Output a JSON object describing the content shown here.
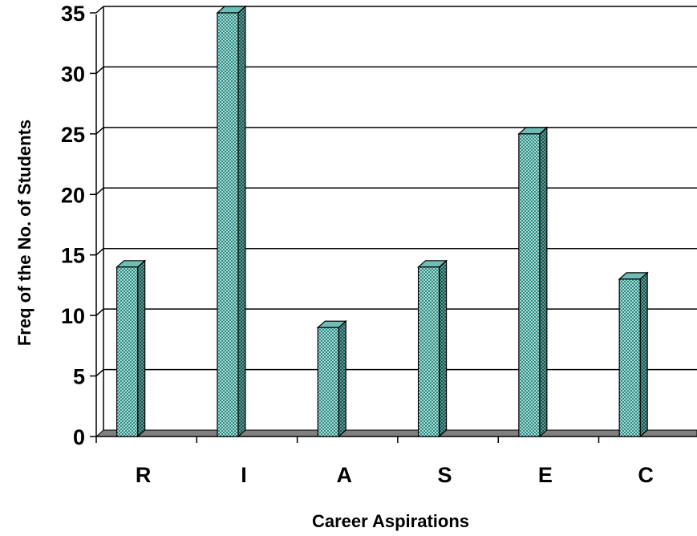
{
  "chart_data": {
    "type": "bar",
    "title": "",
    "xlabel": "Career Aspirations",
    "ylabel": "Freq of the No. of Students",
    "categories": [
      "R",
      "I",
      "A",
      "S",
      "E",
      "C"
    ],
    "values": [
      14,
      35,
      9,
      14,
      25,
      13
    ],
    "ylim": [
      0,
      35
    ],
    "yticks": [
      0,
      5,
      10,
      15,
      20,
      25,
      30,
      35
    ],
    "grid": true,
    "style": "3d-bar",
    "colors": {
      "bar_front": "#9fd8d0",
      "bar_pattern": "#2f8a82",
      "bar_side": "#2e6f69",
      "bar_top": "#6fbdb5",
      "floor": "#808080",
      "grid": "#000000"
    }
  }
}
